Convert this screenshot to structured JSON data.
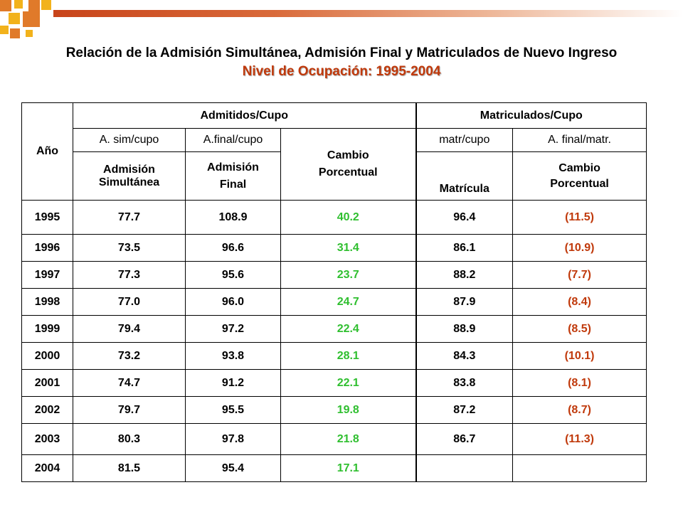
{
  "header": {
    "title": "Relación de la Admisión Simultánea, Admisión Final y Matriculados de Nuevo Ingreso",
    "subtitle": "Nivel de Ocupación: 1995-2004"
  },
  "colors": {
    "accent": "#c0390b",
    "positive": "#2fbf2f",
    "deco_orange": "#e07a2a",
    "deco_yellow": "#f2b21b"
  },
  "table": {
    "col_year": "Año",
    "group_admitidos": "Admitidos/Cupo",
    "group_matriculados": "Matriculados/Cupo",
    "sub_sim": "A. sim/cupo",
    "sub_final": "A.final/cupo",
    "sub_matr": "matr/cupo",
    "sub_final_matr": "A. final/matr.",
    "cambio_1_line1": "Cambio",
    "cambio_1_line2": "Porcentual",
    "adm_sim_line1": "Admisión",
    "adm_sim_line2": "Simultánea",
    "adm_final_line1": "Admisión",
    "adm_final_line2": "Final",
    "matricula": "Matrícula",
    "cambio_2_line1": "Cambio",
    "cambio_2_line2": "Porcentual",
    "rows": [
      {
        "year": "1995",
        "sim": "77.7",
        "final": "108.9",
        "cambio": "40.2",
        "matr": "96.4",
        "cambio2": "(11.5)"
      },
      {
        "year": "1996",
        "sim": "73.5",
        "final": "96.6",
        "cambio": "31.4",
        "matr": "86.1",
        "cambio2": "(10.9)"
      },
      {
        "year": "1997",
        "sim": "77.3",
        "final": "95.6",
        "cambio": "23.7",
        "matr": "88.2",
        "cambio2": "(7.7)"
      },
      {
        "year": "1998",
        "sim": "77.0",
        "final": "96.0",
        "cambio": "24.7",
        "matr": "87.9",
        "cambio2": "(8.4)"
      },
      {
        "year": "1999",
        "sim": "79.4",
        "final": "97.2",
        "cambio": "22.4",
        "matr": "88.9",
        "cambio2": "(8.5)"
      },
      {
        "year": "2000",
        "sim": "73.2",
        "final": "93.8",
        "cambio": "28.1",
        "matr": "84.3",
        "cambio2": "(10.1)"
      },
      {
        "year": "2001",
        "sim": "74.7",
        "final": "91.2",
        "cambio": "22.1",
        "matr": "83.8",
        "cambio2": "(8.1)"
      },
      {
        "year": "2002",
        "sim": "79.7",
        "final": "95.5",
        "cambio": "19.8",
        "matr": "87.2",
        "cambio2": "(8.7)"
      },
      {
        "year": "2003",
        "sim": "80.3",
        "final": "97.8",
        "cambio": "21.8",
        "matr": "86.7",
        "cambio2": "(11.3)"
      },
      {
        "year": "2004",
        "sim": "81.5",
        "final": "95.4",
        "cambio": "17.1",
        "matr": "",
        "cambio2": ""
      }
    ]
  }
}
